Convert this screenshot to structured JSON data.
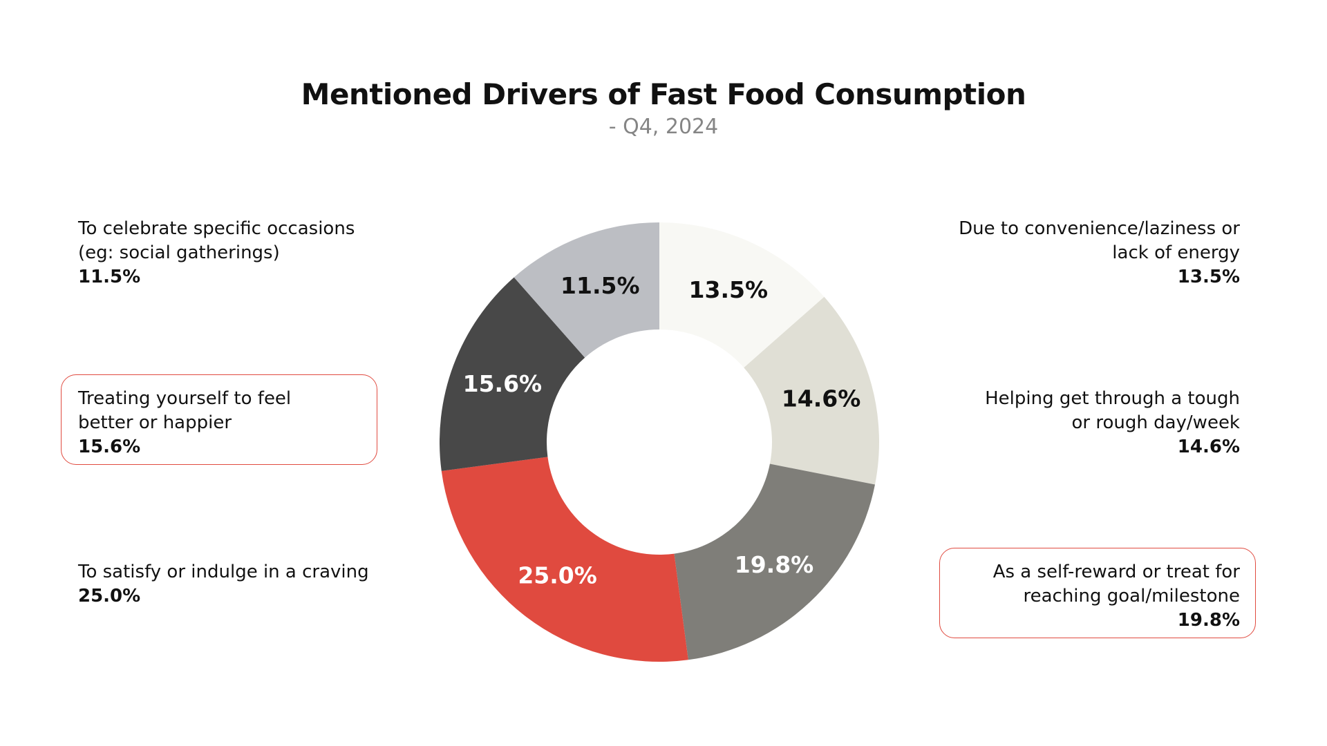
{
  "chart_data": {
    "type": "pie",
    "subtype": "donut",
    "title": "Mentioned Drivers of Fast Food Consumption",
    "subtitle": "- Q4, 2024",
    "slices": [
      {
        "label_lines": [
          "Due to convenience/laziness or",
          "lack of energy"
        ],
        "value": 13.5,
        "display": "13.5%",
        "color": "#f8f8f4",
        "text_color": "#111111",
        "side": "right",
        "highlighted": false
      },
      {
        "label_lines": [
          "Helping get through a tough",
          "or rough day/week"
        ],
        "value": 14.6,
        "display": "14.6%",
        "color": "#e0dfd5",
        "text_color": "#111111",
        "side": "right",
        "highlighted": false
      },
      {
        "label_lines": [
          "As a self-reward or treat for",
          "reaching goal/milestone"
        ],
        "value": 19.8,
        "display": "19.8%",
        "color": "#7f7e79",
        "text_color": "#ffffff",
        "side": "right",
        "highlighted": true
      },
      {
        "label_lines": [
          "To satisfy or indulge in a craving"
        ],
        "value": 25.0,
        "display": "25.0%",
        "color": "#e04a3f",
        "text_color": "#ffffff",
        "side": "left",
        "highlighted": false
      },
      {
        "label_lines": [
          "Treating yourself to feel",
          "better or happier"
        ],
        "value": 15.6,
        "display": "15.6%",
        "color": "#484848",
        "text_color": "#ffffff",
        "side": "left",
        "highlighted": true
      },
      {
        "label_lines": [
          "To celebrate specific occasions",
          "(eg: social gatherings)"
        ],
        "value": 11.5,
        "display": "11.5%",
        "color": "#bcbec3",
        "text_color": "#111111",
        "side": "left",
        "highlighted": false
      }
    ],
    "start": "top",
    "direction": "clockwise",
    "highlight_color": "#e04a3f"
  }
}
